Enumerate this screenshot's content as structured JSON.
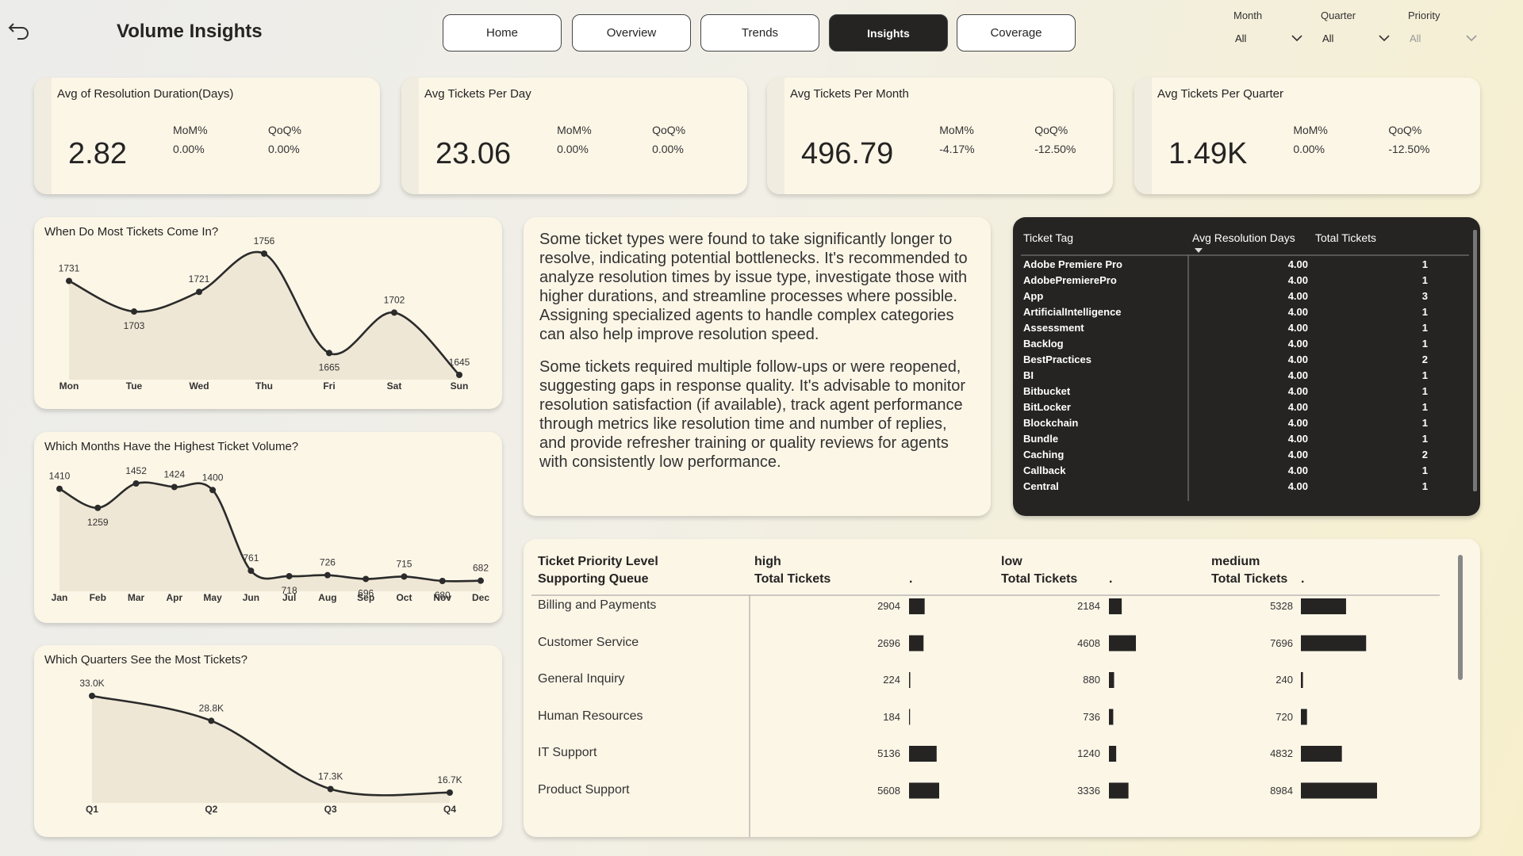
{
  "header": {
    "title": "Volume Insights",
    "nav": [
      "Home",
      "Overview",
      "Trends",
      "Insights",
      "Coverage"
    ],
    "active_nav": 3,
    "filters": [
      {
        "label": "Month",
        "value": "All"
      },
      {
        "label": "Quarter",
        "value": "All"
      },
      {
        "label": "Priority",
        "value": "All"
      }
    ]
  },
  "kpis": [
    {
      "title": "Avg of Resolution Duration(Days)",
      "value": "2.82",
      "metrics": [
        {
          "label": "MoM%",
          "value": "0.00%"
        },
        {
          "label": "QoQ%",
          "value": "0.00%"
        }
      ]
    },
    {
      "title": "Avg Tickets Per Day",
      "value": "23.06",
      "metrics": [
        {
          "label": "MoM%",
          "value": "0.00%"
        },
        {
          "label": "QoQ%",
          "value": "0.00%"
        }
      ]
    },
    {
      "title": "Avg Tickets Per Month",
      "value": "496.79",
      "metrics": [
        {
          "label": "MoM%",
          "value": "-4.17%"
        },
        {
          "label": "QoQ%",
          "value": "-12.50%"
        }
      ]
    },
    {
      "title": "Avg Tickets Per Quarter",
      "value": "1.49K",
      "metrics": [
        {
          "label": "MoM%",
          "value": "0.00%"
        },
        {
          "label": "QoQ%",
          "value": "-12.50%"
        }
      ]
    }
  ],
  "chart_data": [
    {
      "type": "line",
      "title": "When Do Most Tickets Come In?",
      "color": "#2b2b2b",
      "categories": [
        "Mon",
        "Tue",
        "Wed",
        "Thu",
        "Fri",
        "Sat",
        "Sun"
      ],
      "values": [
        1731,
        1703,
        1721,
        1756,
        1665,
        1702,
        1645
      ]
    },
    {
      "type": "line",
      "title": "Which Months Have the Highest Ticket Volume?",
      "color": "#2b2b2b",
      "categories": [
        "Jan",
        "Feb",
        "Mar",
        "Apr",
        "May",
        "Jun",
        "Jul",
        "Aug",
        "Sep",
        "Oct",
        "Nov",
        "Dec"
      ],
      "values": [
        1410,
        1259,
        1452,
        1424,
        1400,
        761,
        718,
        726,
        696,
        715,
        680,
        682
      ]
    },
    {
      "type": "line",
      "title": "Which Quarters See the Most Tickets?",
      "color": "#2b2b2b",
      "categories": [
        "Q1",
        "Q2",
        "Q3",
        "Q4"
      ],
      "values": [
        33000,
        28800,
        17300,
        16700
      ],
      "value_labels": [
        "33.0K",
        "28.8K",
        "17.3K",
        "16.7K"
      ]
    }
  ],
  "insights": {
    "paragraphs": [
      "Some ticket types were found to take significantly longer to resolve, indicating potential bottlenecks. It's recommended to analyze resolution times by issue type, investigate those with higher durations, and streamline processes where possible. Assigning specialized agents to handle complex categories can also help improve resolution speed.",
      "Some tickets required multiple follow-ups or were reopened, suggesting gaps in response quality. It's advisable to monitor resolution satisfaction (if available), track agent performance through metrics like resolution time and number of replies, and provide refresher training or quality reviews for agents with consistently low performance."
    ]
  },
  "tag_table": {
    "columns": [
      "Ticket Tag",
      "Avg Resolution Days",
      "Total Tickets"
    ],
    "rows": [
      [
        "Adobe Premiere Pro",
        "4.00",
        1
      ],
      [
        "AdobePremierePro",
        "4.00",
        1
      ],
      [
        "App",
        "4.00",
        3
      ],
      [
        "ArtificialIntelligence",
        "4.00",
        1
      ],
      [
        "Assessment",
        "4.00",
        1
      ],
      [
        "Backlog",
        "4.00",
        1
      ],
      [
        "BestPractices",
        "4.00",
        2
      ],
      [
        "BI",
        "4.00",
        1
      ],
      [
        "Bitbucket",
        "4.00",
        1
      ],
      [
        "BitLocker",
        "4.00",
        1
      ],
      [
        "Blockchain",
        "4.00",
        1
      ],
      [
        "Bundle",
        "4.00",
        1
      ],
      [
        "Caching",
        "4.00",
        2
      ],
      [
        "Callback",
        "4.00",
        1
      ],
      [
        "Central",
        "4.00",
        1
      ]
    ]
  },
  "priority_table": {
    "row_header": [
      "Ticket Priority Level",
      "Supporting Queue"
    ],
    "groups": [
      "high",
      "low",
      "medium"
    ],
    "measure": "Total Tickets",
    "bar_header": ".",
    "rows": [
      {
        "queue": "Billing and Payments",
        "values": [
          2904,
          2184,
          5328
        ]
      },
      {
        "queue": "Customer Service",
        "values": [
          2696,
          4608,
          7696
        ]
      },
      {
        "queue": "General Inquiry",
        "values": [
          224,
          880,
          240
        ]
      },
      {
        "queue": "Human Resources",
        "values": [
          184,
          736,
          720
        ]
      },
      {
        "queue": "IT Support",
        "values": [
          5136,
          1240,
          4832
        ]
      },
      {
        "queue": "Product Support",
        "values": [
          5608,
          3336,
          8984
        ]
      }
    ]
  }
}
